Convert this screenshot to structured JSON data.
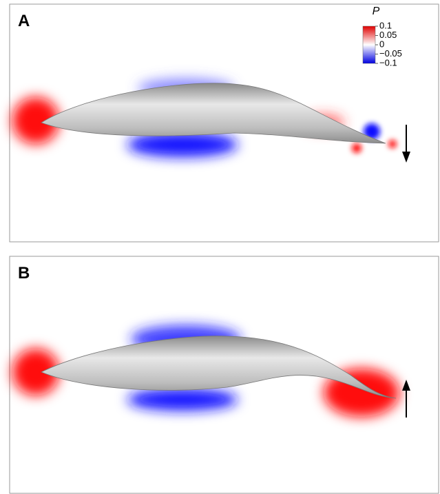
{
  "panels": [
    {
      "label": "A"
    },
    {
      "label": "B"
    }
  ],
  "legend": {
    "title": "P",
    "ticks": [
      0.1,
      0.05,
      0,
      {
        "value": -0.05,
        "label": "−0.05"
      },
      {
        "value": -0.1,
        "label": "−0.1"
      }
    ]
  }
}
